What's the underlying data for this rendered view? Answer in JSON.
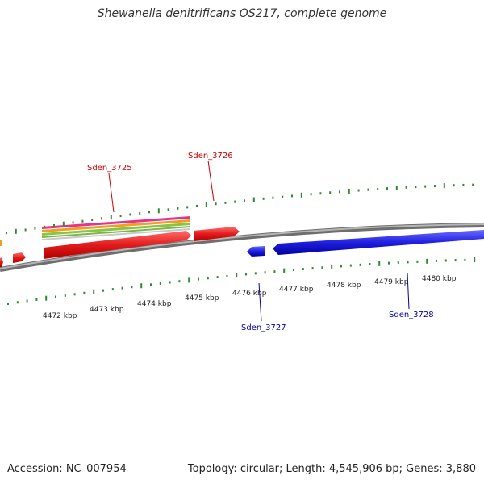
{
  "title": "Shewanella denitrificans OS217, complete genome",
  "footer": {
    "accession": "Accession: NC_007954",
    "summary": "Topology: circular; Length: 4,545,906 bp; Genes: 3,880"
  },
  "colors": {
    "forward_gene": "#e31b1b",
    "reverse_gene": "#1f1fe0",
    "ruler_tick": "#2e8b2e",
    "backbone": "#808080",
    "forward_label": "#cc0000",
    "reverse_label": "#0000aa"
  },
  "scale_labels": [
    "4472 kbp",
    "4473 kbp",
    "4474 kbp",
    "4475 kbp",
    "4476 kbp",
    "4477 kbp",
    "4478 kbp",
    "4479 kbp",
    "4480 kbp"
  ],
  "gene_labels": [
    {
      "id": "sden-3725",
      "text": "Sden_3725",
      "strand": "forward"
    },
    {
      "id": "sden-3726",
      "text": "Sden_3726",
      "strand": "forward"
    },
    {
      "id": "sden-3727",
      "text": "Sden_3727",
      "strand": "reverse"
    },
    {
      "id": "sden-3728",
      "text": "Sden_3728",
      "strand": "reverse"
    }
  ],
  "feature_track_colors": [
    "#e8318f",
    "#f0a020",
    "#8bc34a",
    "#7ab648",
    "#c8c8c8"
  ]
}
